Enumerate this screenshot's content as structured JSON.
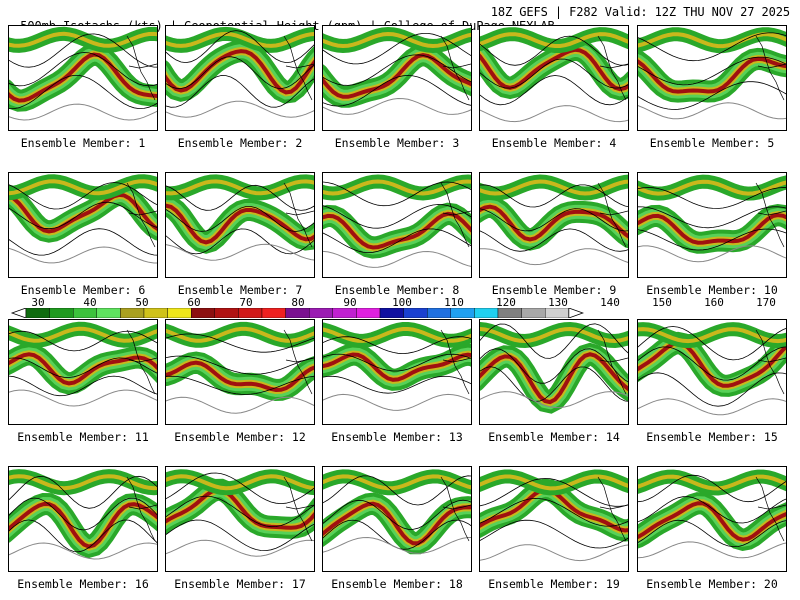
{
  "header": {
    "left": "500mb Isotachs (kts) | Geopotential Height (gpm) | College of DuPage NEXLAB",
    "right": "18Z GEFS | F282 Valid: 12Z THU NOV 27 2025"
  },
  "colorbar": {
    "labels": [
      "30",
      "40",
      "50",
      "60",
      "70",
      "80",
      "90",
      "100",
      "110",
      "120",
      "130",
      "140",
      "150",
      "160",
      "170"
    ],
    "colors": [
      "#0f6b0f",
      "#1f9a1f",
      "#3cc23c",
      "#5ee25e",
      "#a9a020",
      "#cfc21a",
      "#efe61a",
      "#8c1010",
      "#b01212",
      "#d01818",
      "#ee2020",
      "#7a1090",
      "#9b1cb3",
      "#c020d0",
      "#e020e0",
      "#1010a0",
      "#1a40d0",
      "#2070e0",
      "#20a0f0",
      "#20d0f0",
      "#808080",
      "#a8a8a8",
      "#d0d0d0"
    ]
  },
  "members": [
    {
      "label": "Ensemble Member: 1"
    },
    {
      "label": "Ensemble Member: 2"
    },
    {
      "label": "Ensemble Member: 3"
    },
    {
      "label": "Ensemble Member: 4"
    },
    {
      "label": "Ensemble Member: 5"
    },
    {
      "label": "Ensemble Member: 6"
    },
    {
      "label": "Ensemble Member: 7"
    },
    {
      "label": "Ensemble Member: 8"
    },
    {
      "label": "Ensemble Member: 9"
    },
    {
      "label": "Ensemble Member: 10"
    },
    {
      "label": "Ensemble Member: 11"
    },
    {
      "label": "Ensemble Member: 12"
    },
    {
      "label": "Ensemble Member: 13"
    },
    {
      "label": "Ensemble Member: 14"
    },
    {
      "label": "Ensemble Member: 15"
    },
    {
      "label": "Ensemble Member: 16"
    },
    {
      "label": "Ensemble Member: 17"
    },
    {
      "label": "Ensemble Member: 18"
    },
    {
      "label": "Ensemble Member: 19"
    },
    {
      "label": "Ensemble Member: 20"
    }
  ]
}
